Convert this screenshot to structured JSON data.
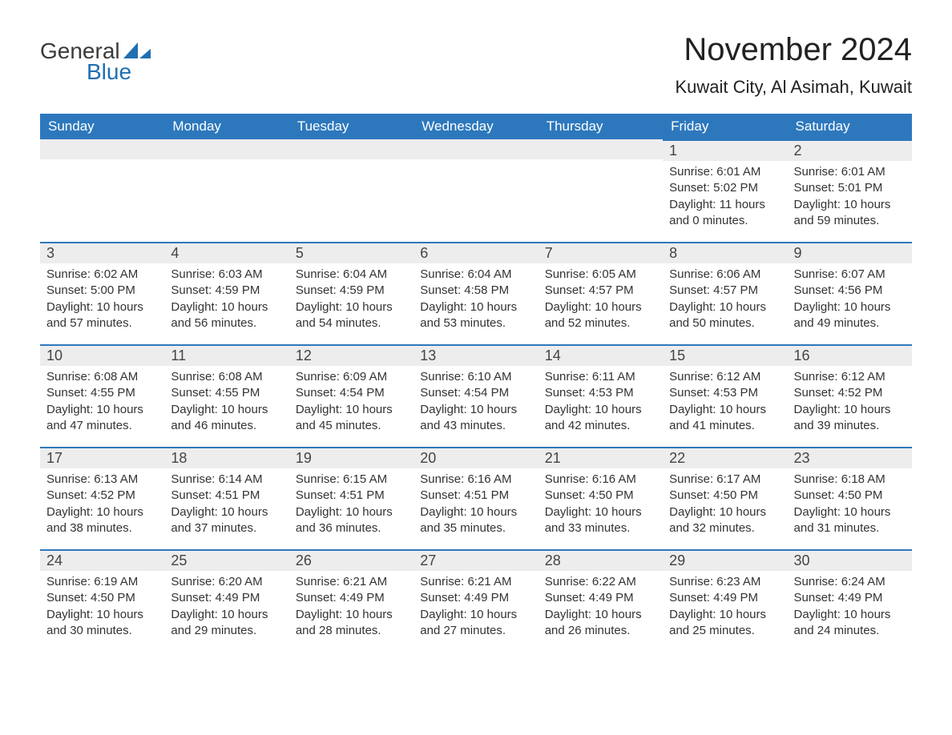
{
  "logo": {
    "text1": "General",
    "text2": "Blue",
    "icon_color": "#1f6fb2"
  },
  "title": "November 2024",
  "location": "Kuwait City, Al Asimah, Kuwait",
  "colors": {
    "header_bg": "#2d78bd",
    "header_text": "#ffffff",
    "day_row_bg": "#ededed",
    "day_border": "#2d78bd",
    "body_text": "#333333"
  },
  "weekdays": [
    "Sunday",
    "Monday",
    "Tuesday",
    "Wednesday",
    "Thursday",
    "Friday",
    "Saturday"
  ],
  "weeks": [
    [
      {
        "day": "",
        "sunrise": "",
        "sunset": "",
        "daylight": ""
      },
      {
        "day": "",
        "sunrise": "",
        "sunset": "",
        "daylight": ""
      },
      {
        "day": "",
        "sunrise": "",
        "sunset": "",
        "daylight": ""
      },
      {
        "day": "",
        "sunrise": "",
        "sunset": "",
        "daylight": ""
      },
      {
        "day": "",
        "sunrise": "",
        "sunset": "",
        "daylight": ""
      },
      {
        "day": "1",
        "sunrise": "Sunrise: 6:01 AM",
        "sunset": "Sunset: 5:02 PM",
        "daylight": "Daylight: 11 hours and 0 minutes."
      },
      {
        "day": "2",
        "sunrise": "Sunrise: 6:01 AM",
        "sunset": "Sunset: 5:01 PM",
        "daylight": "Daylight: 10 hours and 59 minutes."
      }
    ],
    [
      {
        "day": "3",
        "sunrise": "Sunrise: 6:02 AM",
        "sunset": "Sunset: 5:00 PM",
        "daylight": "Daylight: 10 hours and 57 minutes."
      },
      {
        "day": "4",
        "sunrise": "Sunrise: 6:03 AM",
        "sunset": "Sunset: 4:59 PM",
        "daylight": "Daylight: 10 hours and 56 minutes."
      },
      {
        "day": "5",
        "sunrise": "Sunrise: 6:04 AM",
        "sunset": "Sunset: 4:59 PM",
        "daylight": "Daylight: 10 hours and 54 minutes."
      },
      {
        "day": "6",
        "sunrise": "Sunrise: 6:04 AM",
        "sunset": "Sunset: 4:58 PM",
        "daylight": "Daylight: 10 hours and 53 minutes."
      },
      {
        "day": "7",
        "sunrise": "Sunrise: 6:05 AM",
        "sunset": "Sunset: 4:57 PM",
        "daylight": "Daylight: 10 hours and 52 minutes."
      },
      {
        "day": "8",
        "sunrise": "Sunrise: 6:06 AM",
        "sunset": "Sunset: 4:57 PM",
        "daylight": "Daylight: 10 hours and 50 minutes."
      },
      {
        "day": "9",
        "sunrise": "Sunrise: 6:07 AM",
        "sunset": "Sunset: 4:56 PM",
        "daylight": "Daylight: 10 hours and 49 minutes."
      }
    ],
    [
      {
        "day": "10",
        "sunrise": "Sunrise: 6:08 AM",
        "sunset": "Sunset: 4:55 PM",
        "daylight": "Daylight: 10 hours and 47 minutes."
      },
      {
        "day": "11",
        "sunrise": "Sunrise: 6:08 AM",
        "sunset": "Sunset: 4:55 PM",
        "daylight": "Daylight: 10 hours and 46 minutes."
      },
      {
        "day": "12",
        "sunrise": "Sunrise: 6:09 AM",
        "sunset": "Sunset: 4:54 PM",
        "daylight": "Daylight: 10 hours and 45 minutes."
      },
      {
        "day": "13",
        "sunrise": "Sunrise: 6:10 AM",
        "sunset": "Sunset: 4:54 PM",
        "daylight": "Daylight: 10 hours and 43 minutes."
      },
      {
        "day": "14",
        "sunrise": "Sunrise: 6:11 AM",
        "sunset": "Sunset: 4:53 PM",
        "daylight": "Daylight: 10 hours and 42 minutes."
      },
      {
        "day": "15",
        "sunrise": "Sunrise: 6:12 AM",
        "sunset": "Sunset: 4:53 PM",
        "daylight": "Daylight: 10 hours and 41 minutes."
      },
      {
        "day": "16",
        "sunrise": "Sunrise: 6:12 AM",
        "sunset": "Sunset: 4:52 PM",
        "daylight": "Daylight: 10 hours and 39 minutes."
      }
    ],
    [
      {
        "day": "17",
        "sunrise": "Sunrise: 6:13 AM",
        "sunset": "Sunset: 4:52 PM",
        "daylight": "Daylight: 10 hours and 38 minutes."
      },
      {
        "day": "18",
        "sunrise": "Sunrise: 6:14 AM",
        "sunset": "Sunset: 4:51 PM",
        "daylight": "Daylight: 10 hours and 37 minutes."
      },
      {
        "day": "19",
        "sunrise": "Sunrise: 6:15 AM",
        "sunset": "Sunset: 4:51 PM",
        "daylight": "Daylight: 10 hours and 36 minutes."
      },
      {
        "day": "20",
        "sunrise": "Sunrise: 6:16 AM",
        "sunset": "Sunset: 4:51 PM",
        "daylight": "Daylight: 10 hours and 35 minutes."
      },
      {
        "day": "21",
        "sunrise": "Sunrise: 6:16 AM",
        "sunset": "Sunset: 4:50 PM",
        "daylight": "Daylight: 10 hours and 33 minutes."
      },
      {
        "day": "22",
        "sunrise": "Sunrise: 6:17 AM",
        "sunset": "Sunset: 4:50 PM",
        "daylight": "Daylight: 10 hours and 32 minutes."
      },
      {
        "day": "23",
        "sunrise": "Sunrise: 6:18 AM",
        "sunset": "Sunset: 4:50 PM",
        "daylight": "Daylight: 10 hours and 31 minutes."
      }
    ],
    [
      {
        "day": "24",
        "sunrise": "Sunrise: 6:19 AM",
        "sunset": "Sunset: 4:50 PM",
        "daylight": "Daylight: 10 hours and 30 minutes."
      },
      {
        "day": "25",
        "sunrise": "Sunrise: 6:20 AM",
        "sunset": "Sunset: 4:49 PM",
        "daylight": "Daylight: 10 hours and 29 minutes."
      },
      {
        "day": "26",
        "sunrise": "Sunrise: 6:21 AM",
        "sunset": "Sunset: 4:49 PM",
        "daylight": "Daylight: 10 hours and 28 minutes."
      },
      {
        "day": "27",
        "sunrise": "Sunrise: 6:21 AM",
        "sunset": "Sunset: 4:49 PM",
        "daylight": "Daylight: 10 hours and 27 minutes."
      },
      {
        "day": "28",
        "sunrise": "Sunrise: 6:22 AM",
        "sunset": "Sunset: 4:49 PM",
        "daylight": "Daylight: 10 hours and 26 minutes."
      },
      {
        "day": "29",
        "sunrise": "Sunrise: 6:23 AM",
        "sunset": "Sunset: 4:49 PM",
        "daylight": "Daylight: 10 hours and 25 minutes."
      },
      {
        "day": "30",
        "sunrise": "Sunrise: 6:24 AM",
        "sunset": "Sunset: 4:49 PM",
        "daylight": "Daylight: 10 hours and 24 minutes."
      }
    ]
  ]
}
